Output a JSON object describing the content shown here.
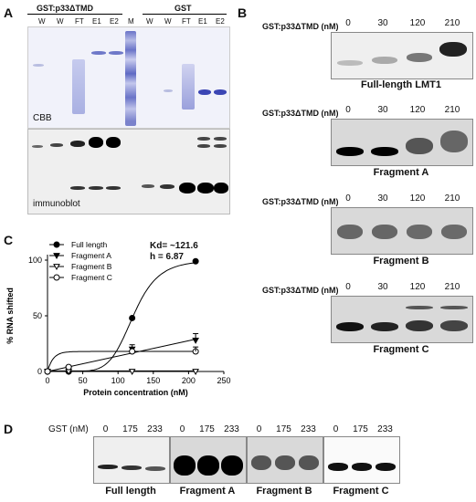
{
  "panelA": {
    "label": "A",
    "left_header": "GST:p33ΔTMD",
    "right_header": "GST",
    "lanes_left": [
      "W",
      "W",
      "FT",
      "E1",
      "E2"
    ],
    "marker_lane": "M",
    "lanes_right": [
      "W",
      "W",
      "FT",
      "E1",
      "E2"
    ],
    "cbb_label": "CBB",
    "immunoblot_label": "immunoblot"
  },
  "panelB": {
    "label": "B",
    "axis_label": "GST:p33ΔTMD (nM)",
    "concentrations": [
      "0",
      "30",
      "120",
      "210"
    ],
    "gels": [
      {
        "caption": "Full-length LMT1"
      },
      {
        "caption": "Fragment A"
      },
      {
        "caption": "Fragment B"
      },
      {
        "caption": "Fragment C"
      }
    ]
  },
  "panelC": {
    "label": "C",
    "annotation_kd": "Kd= ~121.6",
    "annotation_h": "h = 6.87"
  },
  "chart_data": {
    "type": "scatter",
    "xlabel": "Protein concentration (nM)",
    "ylabel": "% RNA shifted",
    "xlim": [
      0,
      250
    ],
    "ylim": [
      0,
      100
    ],
    "xticks": [
      0,
      50,
      100,
      150,
      200,
      250
    ],
    "yticks": [
      0,
      50,
      100
    ],
    "legend_position": "top-left",
    "series": [
      {
        "name": "Full length",
        "marker": "filled-circle",
        "x": [
          0,
          30,
          120,
          210
        ],
        "y": [
          0,
          0,
          48,
          99
        ]
      },
      {
        "name": "Fragment A",
        "marker": "filled-triangle-down",
        "x": [
          0,
          30,
          120,
          210
        ],
        "y": [
          0,
          2,
          20,
          28
        ]
      },
      {
        "name": "Fragment B",
        "marker": "open-triangle-down",
        "x": [
          0,
          30,
          120,
          210
        ],
        "y": [
          0,
          0,
          0,
          0
        ]
      },
      {
        "name": "Fragment C",
        "marker": "open-circle",
        "x": [
          0,
          30,
          120,
          210
        ],
        "y": [
          0,
          4,
          18,
          18
        ]
      }
    ]
  },
  "panelD": {
    "label": "D",
    "axis_label": "GST (nM)",
    "concentrations": [
      "0",
      "175",
      "233"
    ],
    "gels": [
      {
        "caption": "Full length"
      },
      {
        "caption": "Fragment A"
      },
      {
        "caption": "Fragment B"
      },
      {
        "caption": "Fragment C"
      }
    ]
  }
}
